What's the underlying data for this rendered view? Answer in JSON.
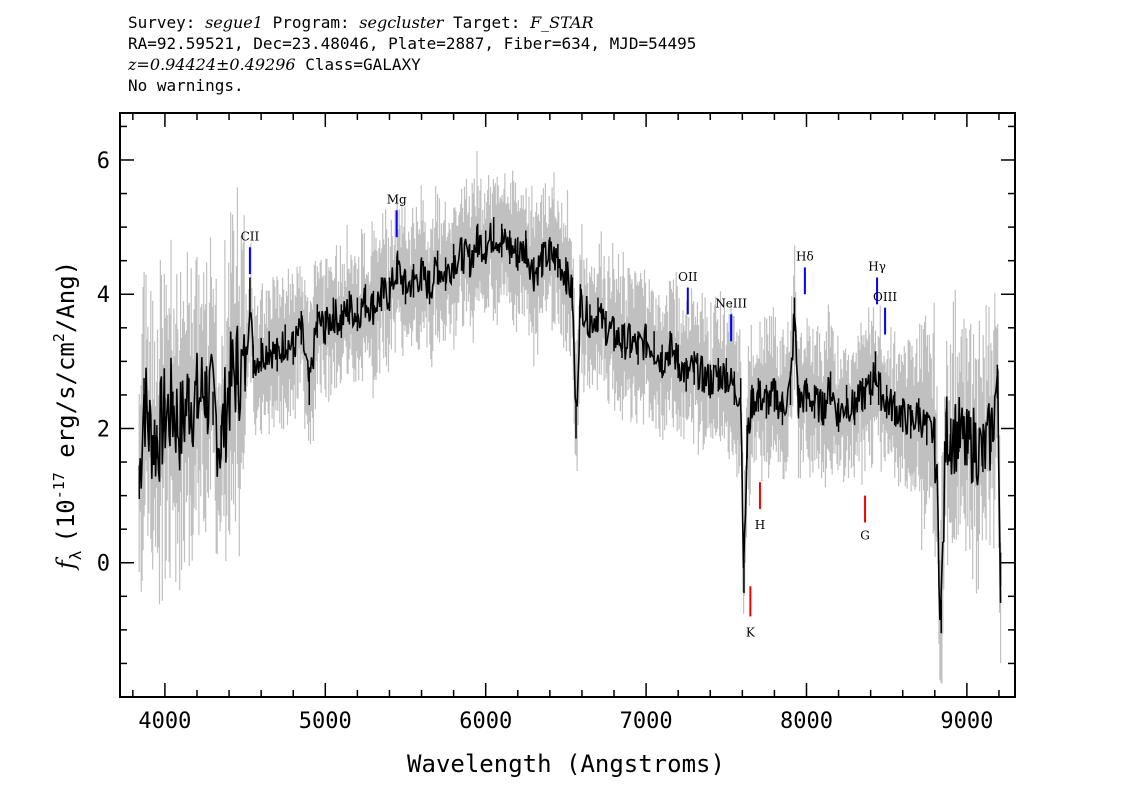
{
  "header": {
    "survey_label": "Survey:",
    "survey": "segue1",
    "program_label": "Program:",
    "program": "segcluster",
    "target_label": "Target:",
    "target": "F_STAR",
    "line2": "RA=92.59521, Dec=23.48046, Plate=2887, Fiber=634, MJD=54495",
    "redshift": "z=0.94424±0.49296",
    "class_text": "Class=GALAXY",
    "warnings": "No warnings."
  },
  "chart_data": {
    "type": "line",
    "xlabel": "Wavelength (Angstroms)",
    "ylabel_prefix": "f",
    "ylabel_sub": "λ",
    "ylabel_main": "(10",
    "ylabel_exp": "-17",
    "ylabel_mid": " erg/s/cm",
    "ylabel_exp2": "2",
    "ylabel_end": "/Ang)",
    "xlim": [
      3720,
      9300
    ],
    "ylim": [
      -2.0,
      6.7
    ],
    "xticks": [
      4000,
      5000,
      6000,
      7000,
      8000,
      9000
    ],
    "yticks": [
      0,
      2,
      4,
      6
    ],
    "colors": {
      "flux": "#000000",
      "error": "#c0c0c0",
      "emission": "#0000ff",
      "absorption": "#ff0000"
    },
    "series": [
      {
        "role": "flux",
        "x": [
          3840,
          3870,
          3900,
          3950,
          4000,
          4050,
          4100,
          4150,
          4200,
          4250,
          4300,
          4350,
          4400,
          4450,
          4500,
          4530,
          4550,
          4600,
          4650,
          4700,
          4750,
          4800,
          4850,
          4900,
          4950,
          5000,
          5050,
          5100,
          5150,
          5200,
          5250,
          5300,
          5350,
          5400,
          5450,
          5500,
          5550,
          5600,
          5650,
          5700,
          5750,
          5800,
          5850,
          5900,
          5950,
          6000,
          6050,
          6100,
          6150,
          6200,
          6250,
          6300,
          6350,
          6400,
          6450,
          6500,
          6540,
          6563,
          6590,
          6650,
          6700,
          6750,
          6800,
          6850,
          6900,
          6950,
          7000,
          7050,
          7100,
          7150,
          7200,
          7250,
          7300,
          7350,
          7400,
          7450,
          7500,
          7550,
          7590,
          7610,
          7630,
          7660,
          7700,
          7750,
          7800,
          7850,
          7900,
          7925,
          7950,
          8000,
          8050,
          8100,
          8150,
          8200,
          8250,
          8300,
          8350,
          8400,
          8430,
          8450,
          8500,
          8550,
          8600,
          8650,
          8700,
          8750,
          8800,
          8840,
          8870,
          8900,
          8950,
          9000,
          9050,
          9100,
          9150,
          9190,
          9210
        ],
        "values": [
          1.2,
          2.5,
          2.0,
          1.8,
          2.2,
          2.3,
          2.0,
          2.5,
          2.4,
          2.6,
          2.3,
          1.8,
          2.6,
          2.9,
          2.8,
          4.0,
          3.0,
          3.1,
          3.2,
          3.1,
          3.3,
          3.2,
          3.5,
          2.6,
          3.6,
          3.5,
          3.7,
          3.6,
          3.8,
          3.7,
          3.9,
          3.8,
          4.0,
          4.0,
          4.4,
          4.1,
          4.2,
          4.3,
          4.1,
          4.4,
          4.3,
          4.5,
          4.6,
          4.5,
          4.8,
          4.7,
          4.9,
          4.8,
          4.7,
          4.6,
          4.7,
          4.3,
          4.5,
          4.6,
          4.5,
          4.3,
          4.0,
          2.1,
          3.9,
          3.6,
          3.7,
          3.5,
          3.4,
          3.3,
          3.3,
          3.2,
          3.3,
          3.2,
          3.0,
          3.2,
          3.0,
          2.8,
          2.9,
          2.8,
          2.7,
          2.8,
          2.8,
          2.6,
          2.5,
          -0.2,
          1.8,
          2.4,
          2.5,
          2.4,
          2.5,
          2.3,
          2.6,
          3.7,
          2.4,
          2.5,
          2.4,
          2.3,
          2.6,
          2.2,
          2.4,
          2.3,
          2.5,
          2.6,
          2.9,
          2.6,
          2.4,
          2.3,
          2.2,
          2.1,
          2.2,
          2.0,
          1.9,
          -0.8,
          2.0,
          1.9,
          1.9,
          1.7,
          1.8,
          1.6,
          1.9,
          2.7,
          -0.1
        ]
      }
    ],
    "lines": [
      {
        "name": "CII",
        "type": "emission",
        "x": 4530,
        "y0": 4.7,
        "y1": 4.3,
        "label_y": 4.8
      },
      {
        "name": "Mg",
        "type": "emission",
        "x": 5445,
        "y0": 5.25,
        "y1": 4.85,
        "label_y": 5.35
      },
      {
        "name": "OII",
        "type": "emission",
        "x": 7260,
        "y0": 4.1,
        "y1": 3.7,
        "label_y": 4.2
      },
      {
        "name": "NeIII",
        "type": "emission",
        "x": 7530,
        "y0": 3.7,
        "y1": 3.3,
        "label_y": 3.8
      },
      {
        "name": "Hδ",
        "type": "emission",
        "x": 7990,
        "y0": 4.4,
        "y1": 4.0,
        "label_y": 4.5
      },
      {
        "name": "Hγ",
        "type": "emission",
        "x": 8440,
        "y0": 4.25,
        "y1": 3.85,
        "label_y": 4.35
      },
      {
        "name": "OIII",
        "type": "emission",
        "x": 8490,
        "y0": 3.8,
        "y1": 3.4,
        "label_y": 3.9
      },
      {
        "name": "H",
        "type": "absorption",
        "x": 7710,
        "y0": 0.8,
        "y1": 1.2,
        "label_y": 0.5
      },
      {
        "name": "G",
        "type": "absorption",
        "x": 8365,
        "y0": 0.6,
        "y1": 1.0,
        "label_y": 0.35
      },
      {
        "name": "K",
        "type": "absorption",
        "x": 7650,
        "y0": -0.8,
        "y1": -0.35,
        "label_y": -1.1
      }
    ]
  }
}
